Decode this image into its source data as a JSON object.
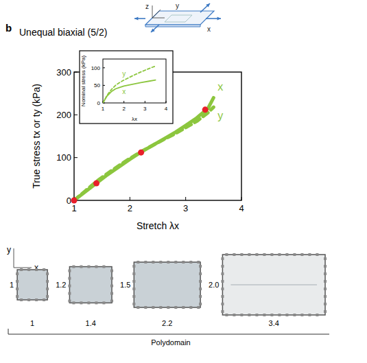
{
  "panel_letter": "b",
  "schematic": {
    "axis_labels": [
      "z",
      "y",
      "x"
    ]
  },
  "chart_data": [
    {
      "type": "line",
      "title": "Unequal biaxial (5/2)",
      "x_label": "Stretch λx",
      "y_label": "True stress tx or ty (kPa)",
      "xlim": [
        1,
        4
      ],
      "ylim": [
        0,
        300
      ],
      "xticks": [
        1,
        2,
        3,
        4
      ],
      "yticks": [
        0,
        100,
        200,
        300
      ],
      "series": [
        {
          "name": "x",
          "color": "#8cc63e",
          "line_style": "solid",
          "x": [
            1,
            1.2,
            1.4,
            1.6,
            1.8,
            2.0,
            2.2,
            2.4,
            2.6,
            2.8,
            3.0,
            3.2,
            3.4,
            3.5
          ],
          "values": [
            0,
            20,
            40,
            60,
            78,
            96,
            113,
            128,
            143,
            158,
            175,
            193,
            215,
            240
          ]
        },
        {
          "name": "y",
          "color": "#8cc63e",
          "line_style": "dashed",
          "x": [
            1,
            1.2,
            1.4,
            1.6,
            1.8,
            2.0,
            2.2,
            2.4,
            2.6,
            2.8,
            3.0,
            3.2,
            3.4,
            3.5
          ],
          "values": [
            0,
            22,
            44,
            63,
            81,
            98,
            114,
            128,
            142,
            155,
            170,
            185,
            205,
            218
          ]
        },
        {
          "type": "scatter",
          "color": "#e8202a",
          "marker": "circle",
          "x": [
            1,
            1.4,
            2.2,
            3.35
          ],
          "values": [
            0,
            40,
            112,
            212
          ]
        }
      ]
    },
    {
      "type": "line",
      "x_label": "λx",
      "y_label": "Nominal stress (kPa)",
      "xlim": [
        1,
        4
      ],
      "ylim": [
        0,
        125
      ],
      "xticks": [
        1,
        2,
        3,
        4
      ],
      "yticks": [
        0,
        50,
        100
      ],
      "series": [
        {
          "name": "y",
          "color": "#8cc63e",
          "line_style": "dashed",
          "x": [
            1,
            1.2,
            1.4,
            1.6,
            1.8,
            2.0,
            2.4,
            2.8,
            3.2,
            3.5
          ],
          "values": [
            0,
            22,
            38,
            50,
            58,
            65,
            77,
            88,
            98,
            105
          ]
        },
        {
          "name": "x",
          "color": "#8cc63e",
          "line_style": "solid",
          "x": [
            1,
            1.2,
            1.4,
            1.6,
            1.8,
            2.0,
            2.4,
            2.8,
            3.2,
            3.5
          ],
          "values": [
            0,
            20,
            32,
            40,
            44,
            48,
            53,
            58,
            62,
            65
          ]
        }
      ]
    }
  ],
  "photos": {
    "axis_labels": {
      "y": "y",
      "x": "x"
    },
    "items": [
      {
        "y": 1,
        "x": 1
      },
      {
        "y": 1.2,
        "x": 1.4
      },
      {
        "y": 1.5,
        "x": 2.2
      },
      {
        "y": {
          "value": 2,
          "label": "2.0"
        },
        "x": 3.4
      }
    ],
    "caption": "Polydomain"
  }
}
